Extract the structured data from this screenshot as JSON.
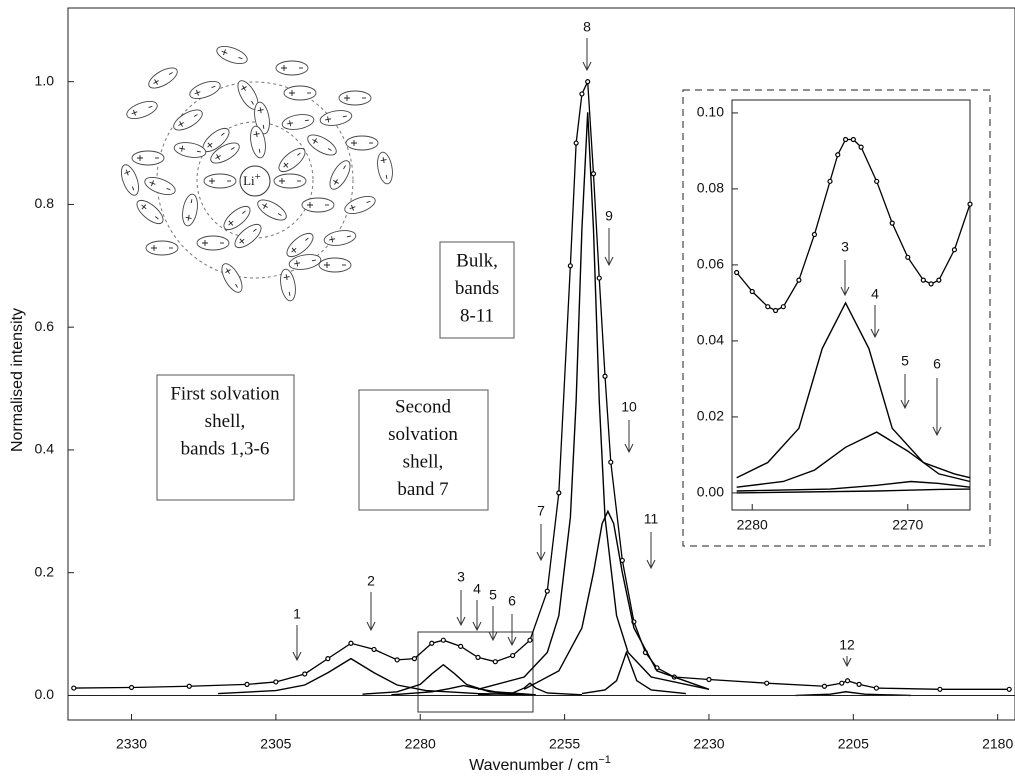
{
  "chart_data": [
    {
      "type": "line",
      "x_label": "Wavenumber / cm",
      "x_label_sup": "−1",
      "y_label": "Normalised intensity",
      "xlim": [
        2341,
        2177
      ],
      "ylim": [
        -0.04,
        1.12
      ],
      "xticks": [
        2330,
        2305,
        2280,
        2255,
        2230,
        2205,
        2180
      ],
      "yticks": [
        {
          "value": 0,
          "label": "0.0"
        },
        0.2,
        0.4,
        0.6,
        0.8,
        {
          "value": 1,
          "label": "1.0"
        }
      ],
      "band_labels": [
        "1",
        "2",
        "3",
        "4",
        "5",
        "6",
        "7",
        "8",
        "9",
        "10",
        "11",
        "12"
      ],
      "annotations": [
        {
          "lines": [
            "First solvation",
            "shell,",
            "bands 1,3-6"
          ]
        },
        {
          "lines": [
            "Second",
            "solvation",
            "shell,",
            "band 7"
          ]
        },
        {
          "lines": [
            "Bulk,",
            "bands",
            "8-11"
          ]
        }
      ],
      "series": [
        {
          "color": "#000",
          "markers": true,
          "x": [
            2340,
            2330,
            2320,
            2310,
            2305,
            2300,
            2296,
            2292,
            2288,
            2284,
            2281,
            2278,
            2276,
            2273,
            2270,
            2267,
            2264,
            2261,
            2258,
            2256,
            2254,
            2253,
            2252,
            2251,
            2250,
            2249,
            2248,
            2247,
            2245,
            2243,
            2241,
            2239,
            2236,
            2230,
            2220,
            2210,
            2207,
            2206,
            2204,
            2201,
            2190,
            2178
          ],
          "values": [
            0.012,
            0.013,
            0.015,
            0.018,
            0.022,
            0.035,
            0.06,
            0.085,
            0.075,
            0.058,
            0.06,
            0.085,
            0.09,
            0.08,
            0.062,
            0.055,
            0.065,
            0.09,
            0.17,
            0.33,
            0.7,
            0.9,
            0.98,
            1.0,
            0.85,
            0.68,
            0.52,
            0.38,
            0.22,
            0.12,
            0.07,
            0.045,
            0.03,
            0.026,
            0.02,
            0.015,
            0.02,
            0.024,
            0.018,
            0.012,
            0.01,
            0.01
          ]
        },
        {
          "color": "#000",
          "x": [
            2315,
            2305,
            2300,
            2296,
            2292,
            2288,
            2284,
            2279,
            2270,
            2260
          ],
          "values": [
            0.003,
            0.008,
            0.017,
            0.037,
            0.06,
            0.037,
            0.017,
            0.008,
            0.003,
            0.001
          ]
        },
        {
          "color": "#000",
          "x": [
            2290,
            2284,
            2280,
            2278,
            2276,
            2274,
            2272,
            2268,
            2262
          ],
          "values": [
            0.002,
            0.006,
            0.018,
            0.035,
            0.05,
            0.035,
            0.018,
            0.006,
            0.002
          ]
        },
        {
          "color": "#000",
          "x": [
            2285,
            2278,
            2275,
            2272.5,
            2270,
            2267,
            2260
          ],
          "values": [
            0.001,
            0.006,
            0.011,
            0.016,
            0.011,
            0.006,
            0.001
          ]
        },
        {
          "color": "#000",
          "x": [
            2270,
            2264,
            2262,
            2261,
            2260,
            2258,
            2252
          ],
          "values": [
            0.001,
            0.004,
            0.012,
            0.02,
            0.012,
            0.004,
            0.001
          ]
        },
        {
          "color": "#000",
          "x": [
            2270,
            2262,
            2258,
            2256,
            2254,
            2253,
            2252,
            2251,
            2250,
            2249,
            2248,
            2246,
            2244,
            2240,
            2230
          ],
          "values": [
            0.01,
            0.03,
            0.07,
            0.13,
            0.29,
            0.48,
            0.76,
            0.95,
            0.76,
            0.48,
            0.29,
            0.13,
            0.07,
            0.03,
            0.01
          ]
        },
        {
          "color": "#000",
          "x": [
            2262,
            2256,
            2252,
            2250,
            2248.5,
            2247.5,
            2246.5,
            2245,
            2243,
            2239,
            2230
          ],
          "values": [
            0.01,
            0.04,
            0.11,
            0.2,
            0.28,
            0.3,
            0.28,
            0.2,
            0.11,
            0.04,
            0.01
          ]
        },
        {
          "color": "#000",
          "x": [
            2252,
            2248,
            2246,
            2244.3,
            2242.5,
            2240,
            2234
          ],
          "values": [
            0.003,
            0.009,
            0.024,
            0.07,
            0.024,
            0.009,
            0.003
          ]
        },
        {
          "color": "#000",
          "x": [
            2215,
            2209,
            2206.3,
            2203,
            2195
          ],
          "values": [
            0,
            0.002,
            0.006,
            0.002,
            0
          ]
        }
      ]
    },
    {
      "type": "line",
      "xlim": [
        2281.3,
        2266
      ],
      "ylim": [
        -0.0045,
        0.1034
      ],
      "xticks": [
        2280,
        2270
      ],
      "yticks": [
        {
          "value": 0,
          "label": "0.00"
        },
        {
          "value": 0.02,
          "label": "0.02"
        },
        {
          "value": 0.04,
          "label": "0.04"
        },
        {
          "value": 0.06,
          "label": "0.06"
        },
        {
          "value": 0.08,
          "label": "0.08"
        },
        {
          "value": 0.1,
          "label": "0.10"
        }
      ],
      "band_labels": [
        "3",
        "4",
        "5",
        "6"
      ],
      "series": [
        {
          "color": "#000",
          "markers": true,
          "x": [
            2281,
            2280,
            2279,
            2278.5,
            2278,
            2277,
            2276,
            2275,
            2274.5,
            2274,
            2273.5,
            2273,
            2272,
            2271,
            2270,
            2269,
            2268.5,
            2268,
            2267,
            2266
          ],
          "values": [
            0.058,
            0.053,
            0.049,
            0.048,
            0.049,
            0.056,
            0.068,
            0.082,
            0.089,
            0.093,
            0.093,
            0.091,
            0.082,
            0.071,
            0.062,
            0.056,
            0.055,
            0.056,
            0.064,
            0.076
          ]
        },
        {
          "color": "#000",
          "x": [
            2281,
            2279,
            2277,
            2275.5,
            2274,
            2272.5,
            2271,
            2269,
            2267,
            2266
          ],
          "values": [
            0.004,
            0.008,
            0.017,
            0.038,
            0.05,
            0.038,
            0.017,
            0.008,
            0.005,
            0.004
          ]
        },
        {
          "color": "#000",
          "x": [
            2281,
            2278,
            2276,
            2274,
            2272,
            2270,
            2268,
            2266
          ],
          "values": [
            0.0015,
            0.003,
            0.006,
            0.012,
            0.016,
            0.011,
            0.005,
            0.003
          ]
        },
        {
          "color": "#000",
          "x": [
            2281,
            2275,
            2272,
            2269.8,
            2268,
            2266
          ],
          "values": [
            0.0005,
            0.001,
            0.002,
            0.003,
            0.0025,
            0.0015
          ]
        },
        {
          "color": "#000",
          "x": [
            2281,
            2272,
            2268,
            2266
          ],
          "values": [
            0,
            0.0005,
            0.0009,
            0.001
          ]
        }
      ]
    }
  ],
  "diagram": {
    "center_label": "Li",
    "center_charge": "+"
  }
}
